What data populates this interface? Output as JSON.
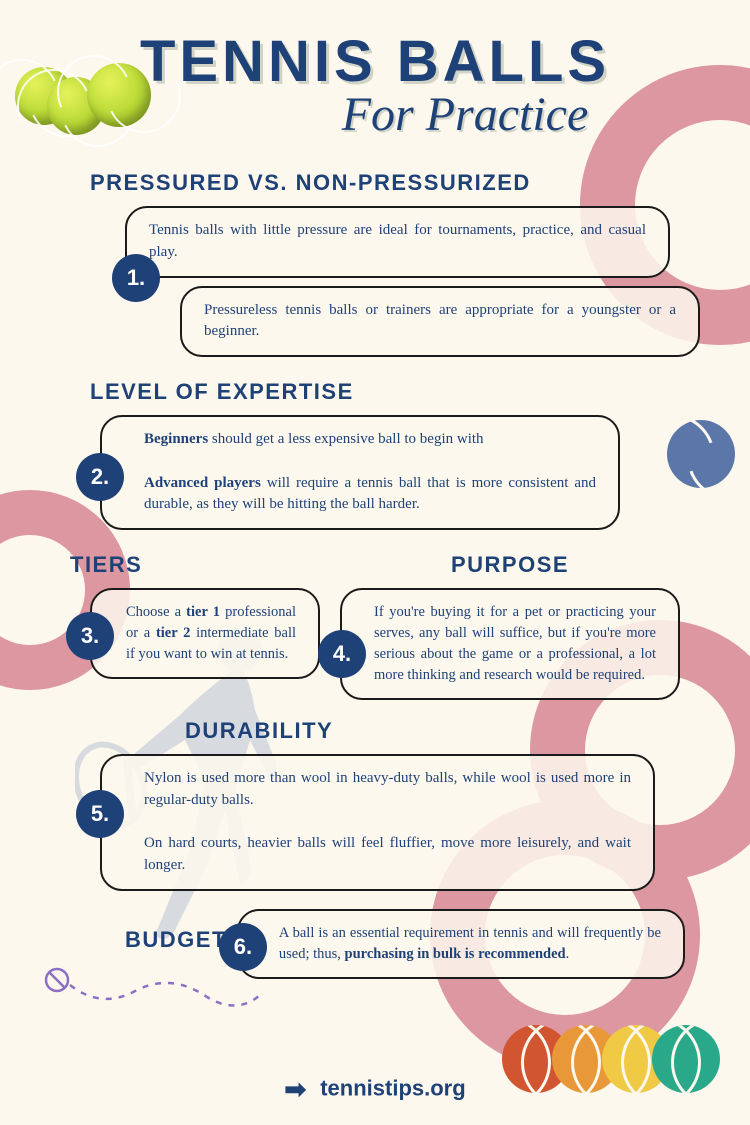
{
  "colors": {
    "bg": "#fdf8ed",
    "primary": "#1e4178",
    "ring": "#dd97a1",
    "player": "#b9c4d4",
    "blueball": "#5b76a8",
    "doodle": "#8a6fc4",
    "balls": [
      "#d05530",
      "#e89838",
      "#f0c945",
      "#2aa98a"
    ]
  },
  "header": {
    "title": "TENNIS BALLS",
    "subtitle": "For Practice"
  },
  "sections": [
    {
      "num": "1.",
      "title": "PRESSURED VS. NON-PRESSURIZED",
      "boxes": [
        "Tennis balls with little pressure are ideal for tournaments, practice, and casual play.",
        "Pressureless tennis balls or trainers are appropriate for a youngster or a beginner."
      ]
    },
    {
      "num": "2.",
      "title": "LEVEL OF EXPERTISE",
      "html": "<strong>Beginners</strong> should get a less expensive ball to begin with<br><br><strong>Advanced players</strong> will require a tennis ball that is more consistent and durable, as they will be hitting the ball harder."
    },
    {
      "num": "3.",
      "title": "TIERS",
      "html": "Choose a <strong>tier 1</strong> professional or a <strong>tier 2</strong> intermediate ball if you want to win at tennis."
    },
    {
      "num": "4.",
      "title": "PURPOSE",
      "text": "If you're buying it for a pet or practicing your serves, any ball will suffice, but if you're more serious about the game or a professional, a lot more thinking and research would be required."
    },
    {
      "num": "5.",
      "title": "DURABILITY",
      "html": "Nylon is used more than wool in heavy-duty balls, while wool is used more in regular-duty balls.<br><br>On hard courts, heavier balls will feel fluffier, move more leisurely, and wait longer."
    },
    {
      "num": "6.",
      "title": "BUDGET",
      "html": "A ball is an essential requirement in tennis and will frequently be used; thus, <strong>purchasing in bulk is recommended</strong>."
    }
  ],
  "footer": {
    "url": "tennistips.org"
  }
}
